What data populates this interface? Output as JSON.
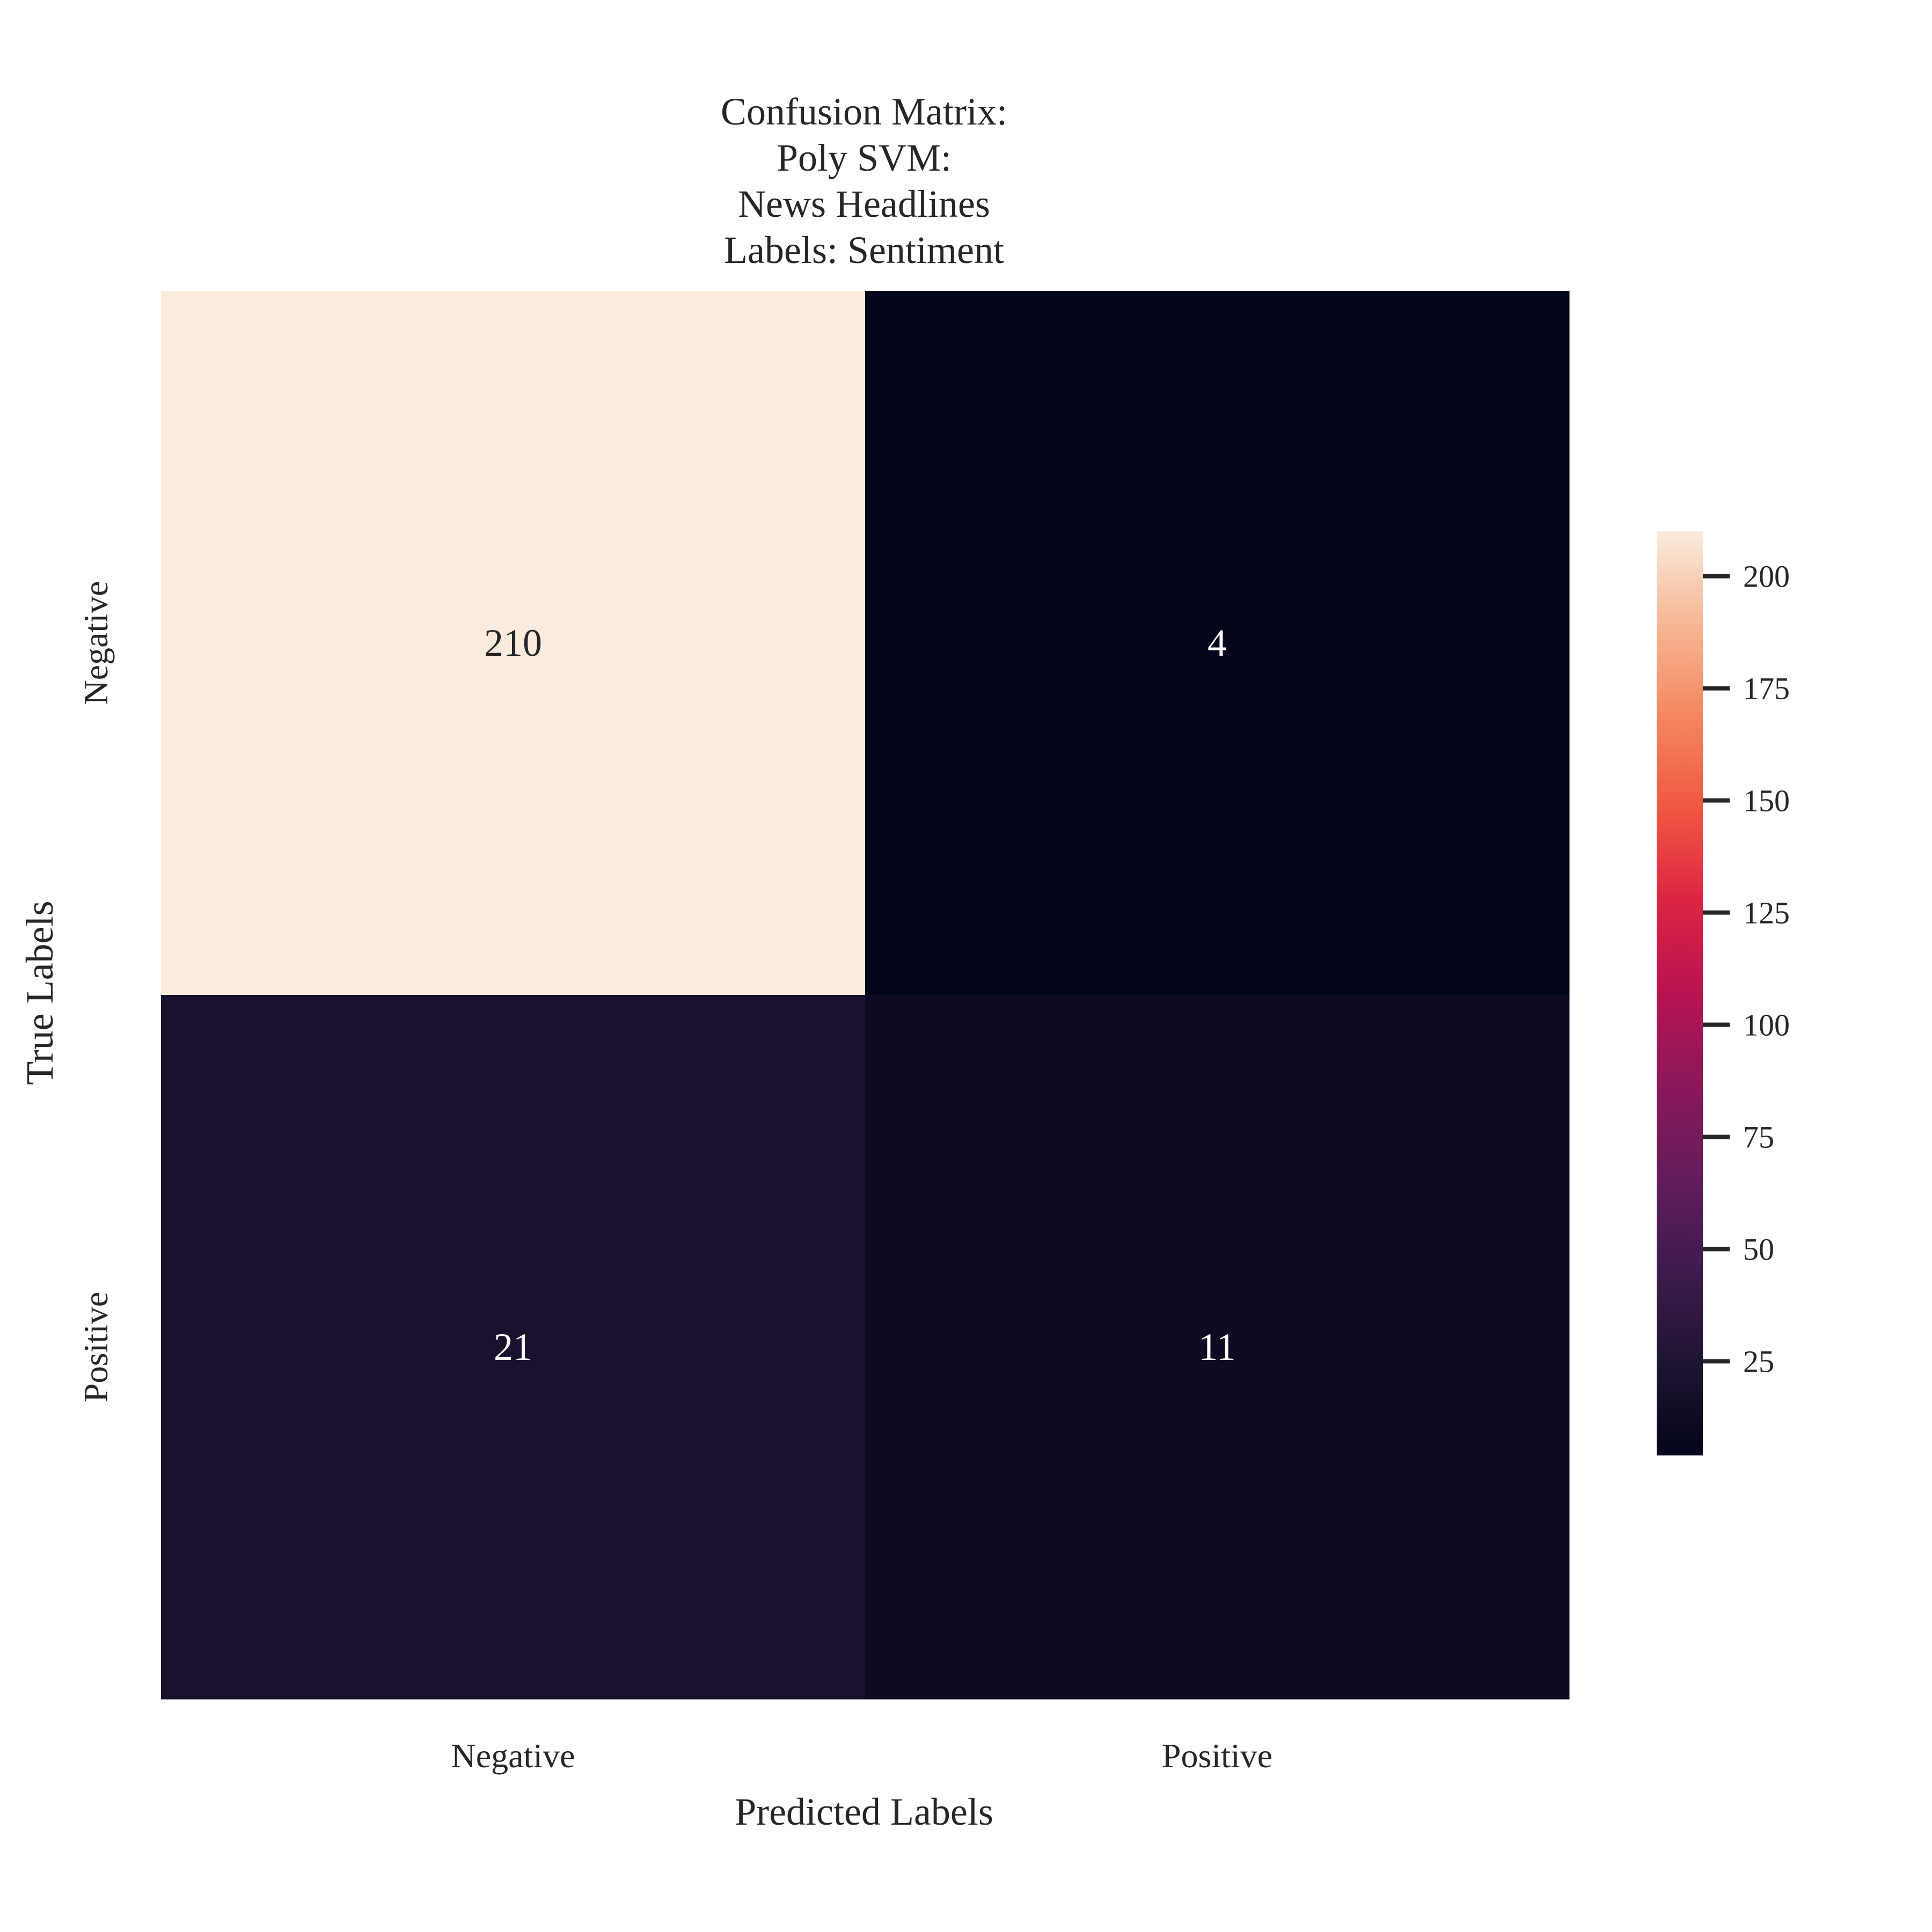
{
  "chart_data": {
    "type": "heatmap",
    "title": [
      "Confusion Matrix:",
      "Poly SVM:",
      "News Headlines",
      "Labels: Sentiment"
    ],
    "xlabel": "Predicted Labels",
    "ylabel": "True Labels",
    "x_categories": [
      "Negative",
      "Positive"
    ],
    "y_categories": [
      "Negative",
      "Positive"
    ],
    "values": [
      [
        210,
        4
      ],
      [
        21,
        11
      ]
    ],
    "colorbar": {
      "min": 4,
      "max": 210,
      "ticks": [
        25,
        50,
        75,
        100,
        125,
        150,
        175,
        200
      ],
      "colormap": "rocket"
    }
  }
}
